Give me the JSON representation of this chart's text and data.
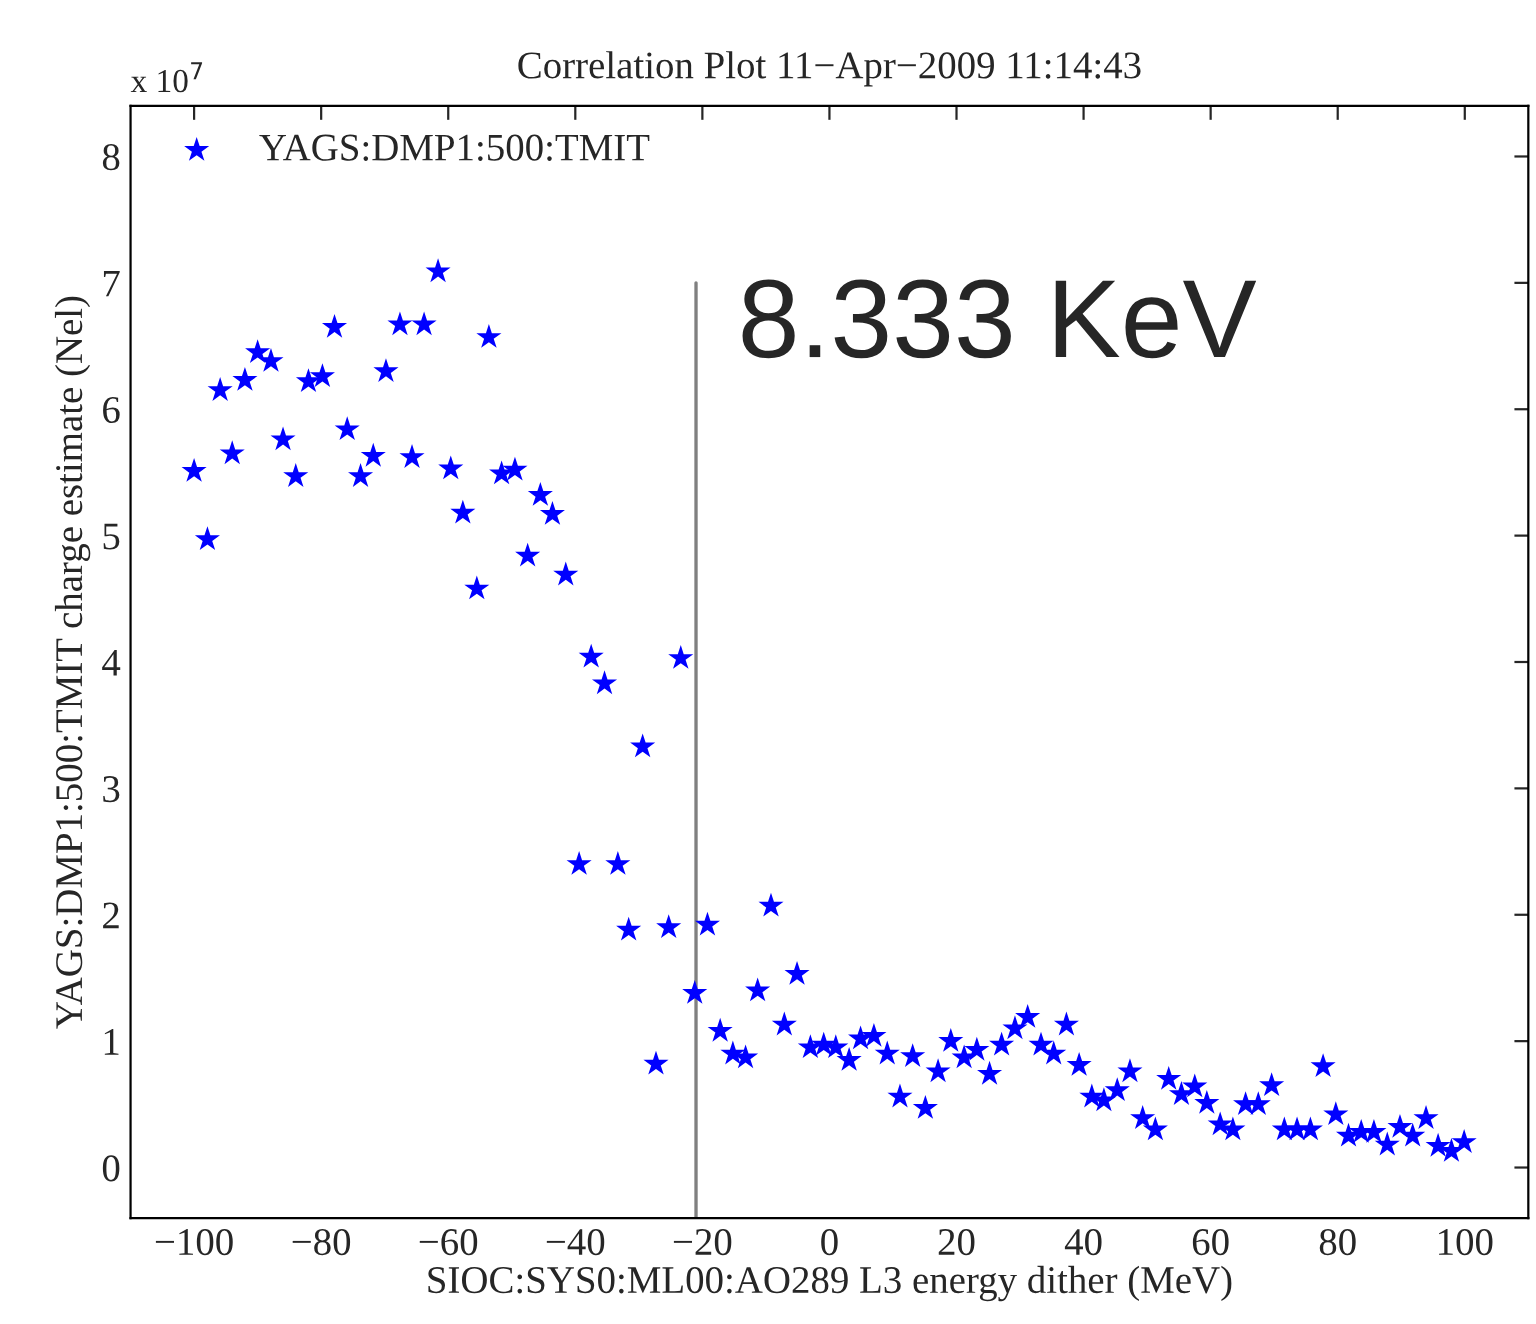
{
  "chart_data": {
    "type": "scatter",
    "title": "Correlation Plot 11−Apr−2009 11:14:43",
    "xlabel": "SIOC:SYS0:ML00:AO289 L3 energy dither (MeV)",
    "ylabel": "YAGS:DMP1:500:TMIT charge estimate (Nel)",
    "annotations": [
      "x 10$^{7}$",
      "8.333 KeV"
    ],
    "xlim": [
      -110,
      110
    ],
    "xticks": [
      -100,
      -80,
      -60,
      -40,
      -20,
      0,
      20,
      40,
      60,
      80,
      100
    ],
    "ylim": [
      -0.4,
      8.4
    ],
    "yticks": [
      0,
      1,
      2,
      3,
      4,
      5,
      6,
      7,
      8
    ],
    "marker": "star",
    "legend": "top left",
    "grid": false,
    "series": [
      {
        "name": "YAGS:DMP1:500:TMIT",
        "color": "#0000ff",
        "x": [
          -100,
          -97.9,
          -95.9,
          -94.0,
          -92.0,
          -90.0,
          -87.9,
          -86.0,
          -84.0,
          -82.0,
          -79.8,
          -77.9,
          -75.9,
          -73.8,
          -71.8,
          -69.8,
          -67.6,
          -65.7,
          -63.8,
          -61.6,
          -59.6,
          -57.7,
          -55.5,
          -53.6,
          -51.6,
          -49.5,
          -47.5,
          -45.5,
          -43.6,
          -41.5,
          -39.4,
          -37.5,
          -35.4,
          -33.3,
          -31.6,
          -29.4,
          -27.3,
          -25.3,
          -23.4,
          -21.2,
          -19.2,
          -17.2,
          -15.2,
          -13.2,
          -11.3,
          -9.2,
          -7.1,
          -5.1,
          -3.0,
          -0.9,
          1.0,
          3.1,
          4.9,
          7.0,
          9.1,
          11.1,
          13.1,
          15.1,
          17.1,
          19.1,
          21.2,
          23.2,
          25.2,
          27.1,
          29.2,
          31.2,
          33.3,
          35.3,
          37.3,
          39.3,
          41.3,
          43.2,
          45.3,
          47.3,
          49.3,
          51.3,
          53.4,
          55.4,
          57.5,
          59.4,
          61.5,
          63.5,
          65.5,
          67.5,
          69.6,
          71.6,
          73.6,
          75.7,
          77.7,
          79.7,
          81.7,
          83.7,
          85.7,
          87.8,
          89.8,
          91.8,
          93.9,
          95.8,
          97.9,
          99.9
        ],
        "values": [
          5.51,
          4.97,
          6.15,
          5.65,
          6.23,
          6.45,
          6.38,
          5.76,
          5.47,
          6.22,
          6.26,
          6.65,
          5.84,
          5.47,
          5.63,
          6.3,
          6.67,
          5.62,
          6.67,
          7.09,
          5.53,
          5.18,
          4.58,
          6.57,
          5.49,
          5.52,
          4.84,
          5.32,
          5.17,
          4.69,
          2.4,
          4.04,
          3.83,
          2.4,
          1.88,
          3.33,
          0.82,
          1.9,
          4.03,
          1.38,
          1.92,
          1.08,
          0.9,
          0.87,
          1.4,
          2.07,
          1.13,
          1.53,
          0.95,
          0.97,
          0.95,
          0.85,
          1.02,
          1.04,
          0.9,
          0.56,
          0.88,
          0.47,
          0.76,
          1.0,
          0.87,
          0.93,
          0.74,
          0.97,
          1.1,
          1.19,
          0.97,
          0.9,
          1.13,
          0.81,
          0.56,
          0.53,
          0.61,
          0.76,
          0.39,
          0.3,
          0.7,
          0.58,
          0.64,
          0.51,
          0.34,
          0.3,
          0.5,
          0.5,
          0.65,
          0.3,
          0.3,
          0.3,
          0.8,
          0.42,
          0.25,
          0.28,
          0.28,
          0.18,
          0.32,
          0.25,
          0.39,
          0.17,
          0.13,
          0.2
        ]
      },
      {
        "type": "line",
        "marker": "none",
        "color": "#808080",
        "x": [
          -21,
          -21
        ],
        "values": [
          -0.4,
          7
        ]
      }
    ]
  }
}
